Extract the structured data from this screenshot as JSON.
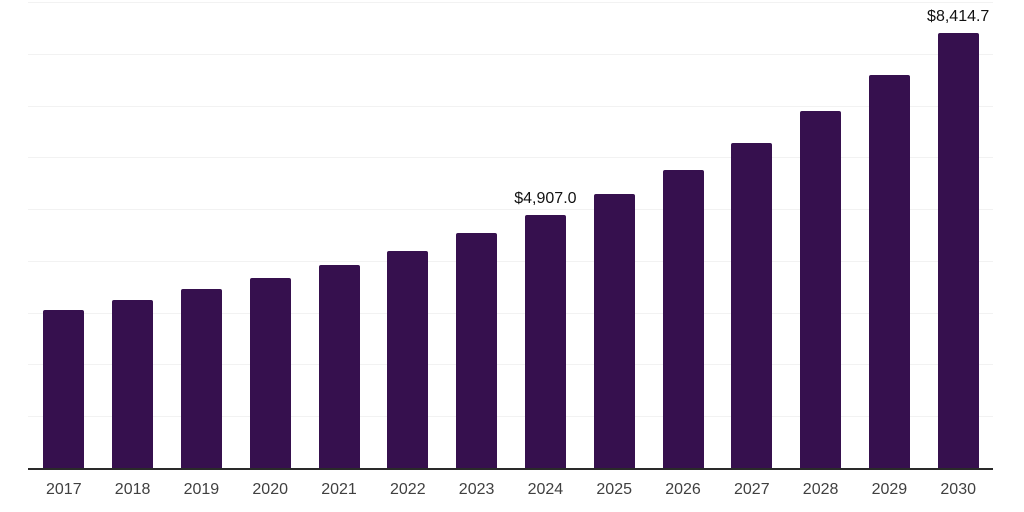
{
  "chart_data": {
    "type": "bar",
    "title": "",
    "xlabel": "",
    "ylabel": "",
    "categories": [
      "2017",
      "2018",
      "2019",
      "2020",
      "2021",
      "2022",
      "2023",
      "2024",
      "2025",
      "2026",
      "2027",
      "2028",
      "2029",
      "2030"
    ],
    "values": [
      3077,
      3268,
      3479,
      3687,
      3943,
      4217,
      4549,
      4907.0,
      5316,
      5770,
      6294,
      6921,
      7617,
      8414.7
    ],
    "value_labels": [
      {
        "index": 7,
        "text": "$4,907.0"
      },
      {
        "index": 13,
        "text": "$8,414.7"
      }
    ],
    "ylim": [
      0,
      9000
    ],
    "gridline_step": 1000,
    "grid": "horizontal-only",
    "y_tick_labels_visible": false,
    "legend": "none",
    "colors": {
      "bar": "#36104e",
      "axis_line": "#2a2a2a",
      "gridline": "#f2f2f2",
      "year_label": "#404040",
      "value_label": "#111111",
      "background": "#ffffff"
    }
  }
}
